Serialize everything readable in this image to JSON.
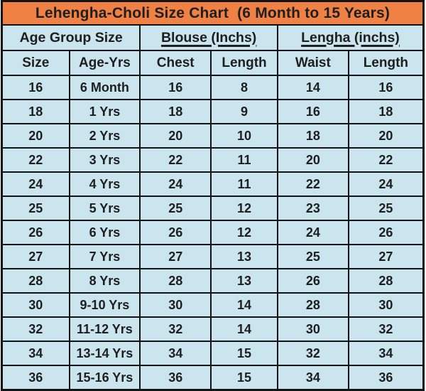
{
  "chart_data": {
    "type": "table",
    "title": "Lehengha-Choli Size Chart  (6 Month to 15 Years)",
    "group_headers": [
      {
        "label": "Age Group Size",
        "underline": false,
        "span": 2
      },
      {
        "label": "Blouse (Inchs)",
        "underline": true,
        "span": 2
      },
      {
        "label": "Lengha (inchs)",
        "underline": true,
        "span": 2
      }
    ],
    "column_headers": [
      "Size",
      "Age-Yrs",
      "Chest",
      "Length",
      "Waist",
      "Length"
    ],
    "rows": [
      [
        "16",
        "6 Month",
        "16",
        "8",
        "14",
        "16"
      ],
      [
        "18",
        "1 Yrs",
        "18",
        "9",
        "16",
        "18"
      ],
      [
        "20",
        "2 Yrs",
        "20",
        "10",
        "18",
        "20"
      ],
      [
        "22",
        "3 Yrs",
        "22",
        "11",
        "20",
        "22"
      ],
      [
        "24",
        "4 Yrs",
        "24",
        "11",
        "22",
        "24"
      ],
      [
        "25",
        "5 Yrs",
        "25",
        "12",
        "23",
        "25"
      ],
      [
        "26",
        "6 Yrs",
        "26",
        "12",
        "24",
        "26"
      ],
      [
        "27",
        "7 Yrs",
        "27",
        "13",
        "25",
        "27"
      ],
      [
        "28",
        "8 Yrs",
        "28",
        "13",
        "26",
        "28"
      ],
      [
        "30",
        "9-10 Yrs",
        "30",
        "14",
        "28",
        "30"
      ],
      [
        "32",
        "11-12 Yrs",
        "32",
        "14",
        "30",
        "32"
      ],
      [
        "34",
        "13-14 Yrs",
        "34",
        "15",
        "32",
        "34"
      ],
      [
        "36",
        "15-16 Yrs",
        "36",
        "15",
        "34",
        "36"
      ]
    ]
  },
  "colors": {
    "title_background": "#ef8145",
    "cell_background": "#cbe5ef",
    "border": "#141414",
    "text": "#1e1e1e"
  }
}
